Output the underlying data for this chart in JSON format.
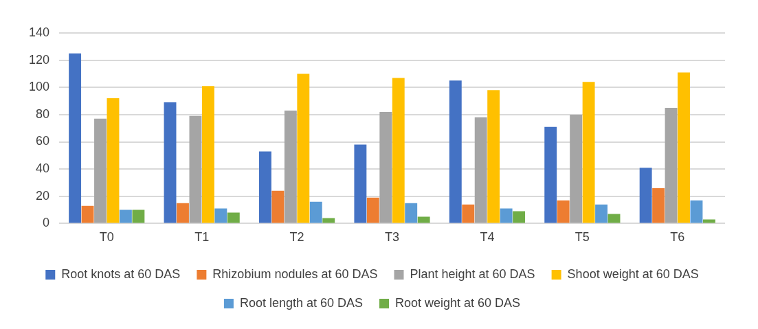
{
  "chart_data": {
    "type": "bar",
    "categories": [
      "T0",
      "T1",
      "T2",
      "T3",
      "T4",
      "T5",
      "T6"
    ],
    "series": [
      {
        "name": "Root knots at 60 DAS",
        "color": "#4472c4",
        "values": [
          125,
          89,
          53,
          58,
          105,
          71,
          41
        ]
      },
      {
        "name": "Rhizobium nodules at 60 DAS",
        "color": "#ed7d31",
        "values": [
          13,
          15,
          24,
          19,
          14,
          17,
          26
        ]
      },
      {
        "name": "Plant height at 60 DAS",
        "color": "#a5a5a5",
        "values": [
          77,
          79,
          83,
          82,
          78,
          80,
          85
        ]
      },
      {
        "name": "Shoot weight at 60 DAS",
        "color": "#ffc000",
        "values": [
          92,
          101,
          110,
          107,
          98,
          104,
          111
        ]
      },
      {
        "name": "Root length at 60 DAS",
        "color": "#5b9bd5",
        "values": [
          10,
          11,
          16,
          15,
          11,
          14,
          17
        ]
      },
      {
        "name": "Root weight at 60 DAS",
        "color": "#70ad47",
        "values": [
          10,
          8,
          4,
          5,
          9,
          7,
          3
        ]
      }
    ],
    "ylim": [
      0,
      140
    ],
    "yticks": [
      0,
      20,
      40,
      60,
      80,
      100,
      120,
      140
    ],
    "grid": "y",
    "legend": "bottom"
  }
}
